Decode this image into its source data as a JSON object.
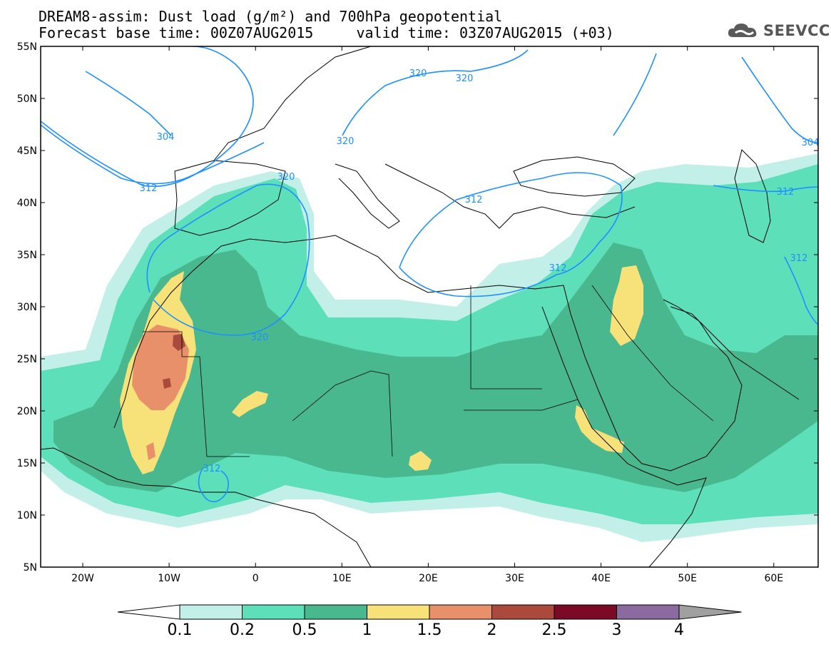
{
  "title_line1": "DREAM8-assim: Dust load (g/m²) and 700hPa geopotential",
  "title_line2": "Forecast base time: 00Z07AUG2015     valid time: 03Z07AUG2015 (+03)",
  "logo_text": "SEEVCCC",
  "axes": {
    "lat_labels": [
      "55N",
      "50N",
      "45N",
      "40N",
      "35N",
      "30N",
      "25N",
      "20N",
      "15N",
      "10N",
      "5N"
    ],
    "lon_labels": [
      "20W",
      "10W",
      "0",
      "10E",
      "20E",
      "30E",
      "40E",
      "50E",
      "60E"
    ]
  },
  "contour_labels": [
    "304",
    "320",
    "320",
    "320",
    "304",
    "312",
    "320",
    "312",
    "312",
    "320",
    "312",
    "312",
    "312"
  ],
  "colorbar": {
    "labels": [
      "0.1",
      "0.2",
      "0.5",
      "1",
      "1.5",
      "2",
      "2.5",
      "3",
      "4"
    ],
    "colors": [
      "#c2f0e9",
      "#5de0b9",
      "#4ab88f",
      "#f7e27a",
      "#e8906a",
      "#a94a3c",
      "#7a0a26",
      "#8b6aa0",
      "#a0a0a0"
    ]
  },
  "colors": {
    "contour": "#1e90ff",
    "bin1": "#c2f0e9",
    "bin2": "#5de0b9",
    "bin3": "#4ab88f",
    "bin4": "#f7e27a",
    "bin5": "#e8906a",
    "bin6": "#a94a3c"
  }
}
